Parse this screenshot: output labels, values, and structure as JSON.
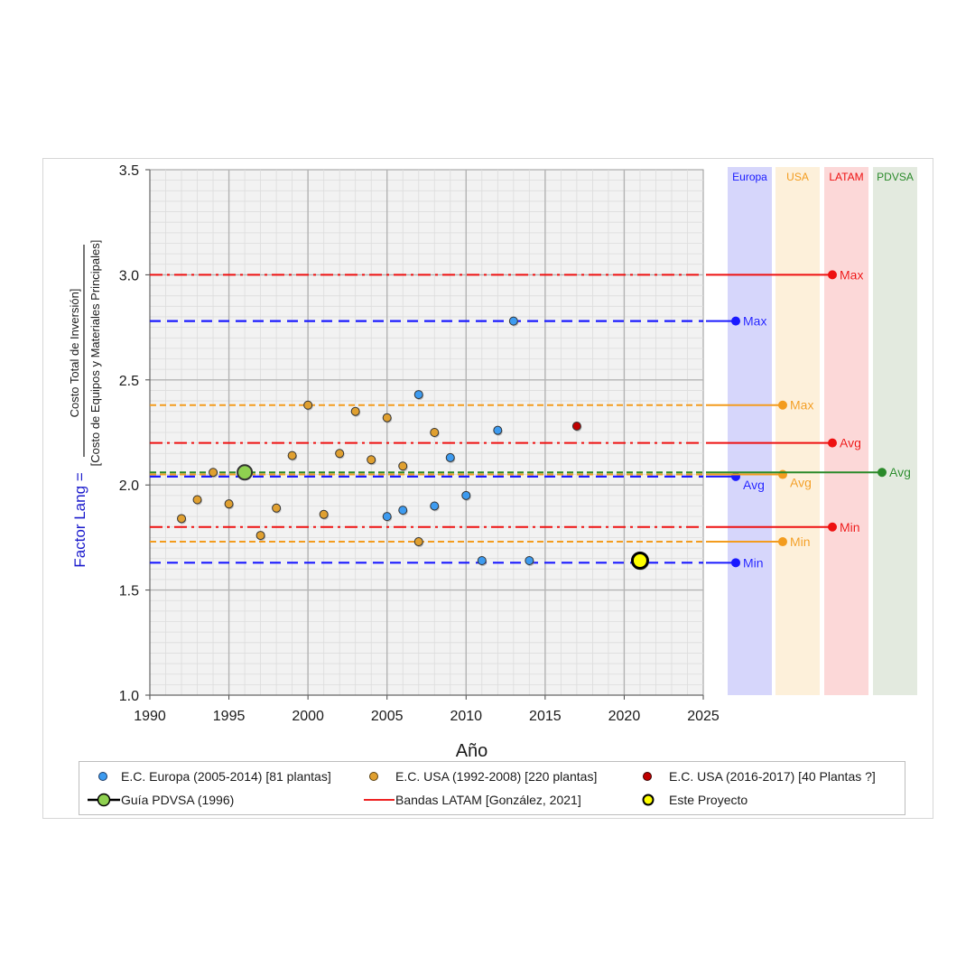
{
  "chart_data": {
    "type": "scatter",
    "xlabel": "Año",
    "ylabel_prefix": "Factor Lang =",
    "ylabel_numerator": "Costo Total de Inversión]",
    "ylabel_denominator": "[Costo de Equipos y Materiales Principales]",
    "xlim": [
      1990,
      2025
    ],
    "ylim": [
      1.0,
      3.5
    ],
    "x_ticks": [
      "1990",
      "1995",
      "2000",
      "2005",
      "2010",
      "2015",
      "2020",
      "2025"
    ],
    "y_ticks": [
      "1.0",
      "1.5",
      "2.0",
      "2.5",
      "3.0",
      "3.5"
    ],
    "grid": true,
    "legend_position": "bottom",
    "series": [
      {
        "name": "E.C. Europa (2005-2014) [81 plantas]",
        "color": "#3d9bf0",
        "marker": "circle",
        "points": [
          [
            2005,
            1.85
          ],
          [
            2006,
            1.88
          ],
          [
            2007,
            2.43
          ],
          [
            2008,
            1.9
          ],
          [
            2009,
            2.13
          ],
          [
            2010,
            1.95
          ],
          [
            2011,
            1.64
          ],
          [
            2012,
            2.26
          ],
          [
            2013,
            2.78
          ],
          [
            2014,
            1.64
          ]
        ]
      },
      {
        "name": "E.C. USA (1992-2008) [220 plantas]",
        "color": "#e0a030",
        "marker": "circle",
        "points": [
          [
            1992,
            1.84
          ],
          [
            1993,
            1.93
          ],
          [
            1994,
            2.06
          ],
          [
            1995,
            1.91
          ],
          [
            1996,
            2.05
          ],
          [
            1997,
            1.76
          ],
          [
            1998,
            1.89
          ],
          [
            1999,
            2.14
          ],
          [
            2000,
            2.38
          ],
          [
            2001,
            1.86
          ],
          [
            2002,
            2.15
          ],
          [
            2003,
            2.35
          ],
          [
            2004,
            2.12
          ],
          [
            2005,
            2.32
          ],
          [
            2006,
            2.09
          ],
          [
            2007,
            1.73
          ],
          [
            2008,
            2.25
          ]
        ]
      },
      {
        "name": "E.C. USA (2016-2017) [40 Plantas ?]",
        "color": "#c00000",
        "marker": "circle",
        "points": [
          [
            2017,
            2.28
          ]
        ]
      },
      {
        "name": "Guía PDVSA (1996)",
        "color": "#8fd150",
        "marker": "circle-large",
        "points": [
          [
            1996,
            2.06
          ]
        ]
      },
      {
        "name": "Bandas LATAM [González, 2021]",
        "color": "#ee2222",
        "marker": "line"
      },
      {
        "name": "Este Proyecto",
        "color": "#ffff00",
        "marker": "circle-large-black",
        "points": [
          [
            2021,
            1.64
          ]
        ]
      }
    ],
    "reference_lines": [
      {
        "group": "Europa",
        "label": "Max",
        "value": 2.78,
        "color": "#1a1aff",
        "style": "dashed"
      },
      {
        "group": "Europa",
        "label": "Avg",
        "value": 2.04,
        "color": "#1a1aff",
        "style": "dashed"
      },
      {
        "group": "Europa",
        "label": "Min",
        "value": 1.63,
        "color": "#1a1aff",
        "style": "dashed"
      },
      {
        "group": "USA",
        "label": "Max",
        "value": 2.38,
        "color": "#f39c1e",
        "style": "dashed"
      },
      {
        "group": "USA",
        "label": "Avg",
        "value": 2.05,
        "color": "#f39c1e",
        "style": "dashed"
      },
      {
        "group": "USA",
        "label": "Min",
        "value": 1.73,
        "color": "#f39c1e",
        "style": "dashed"
      },
      {
        "group": "LATAM",
        "label": "Max",
        "value": 3.0,
        "color": "#ee1111",
        "style": "dashdot"
      },
      {
        "group": "LATAM",
        "label": "Avg",
        "value": 2.2,
        "color": "#ee1111",
        "style": "dashdot"
      },
      {
        "group": "LATAM",
        "label": "Min",
        "value": 1.8,
        "color": "#ee1111",
        "style": "dashdot"
      },
      {
        "group": "PDVSA",
        "label": "Avg",
        "value": 2.06,
        "color": "#2a8a2a",
        "style": "dashed"
      }
    ],
    "bands": [
      {
        "label": "Europa",
        "color": "#1a1aff",
        "fill": "#d6d6fb"
      },
      {
        "label": "USA",
        "color": "#f39c1e",
        "fill": "#fdf0da"
      },
      {
        "label": "LATAM",
        "color": "#ee1111",
        "fill": "#fcd8d8"
      },
      {
        "label": "PDVSA",
        "color": "#2a8a2a",
        "fill": "#e3eadf"
      }
    ]
  }
}
